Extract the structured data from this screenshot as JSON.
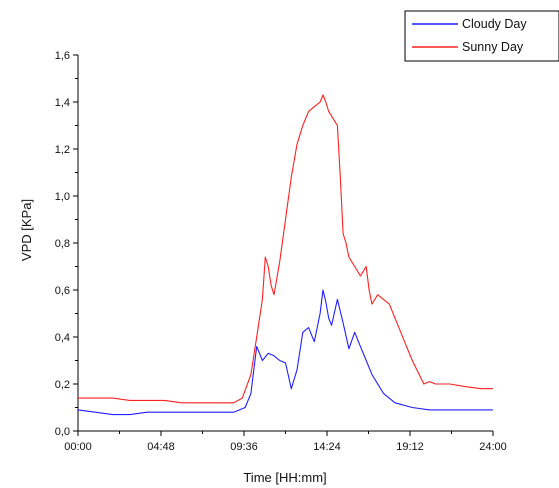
{
  "chart_data": {
    "type": "line",
    "title": "",
    "xlabel": "Time [HH:mm]",
    "ylabel": "VPD [KPa]",
    "xlim": [
      0,
      1440
    ],
    "ylim": [
      0,
      1.6
    ],
    "x_ticks": [
      0,
      288,
      576,
      864,
      1152,
      1440
    ],
    "x_tick_labels": [
      "00:00",
      "04:48",
      "09:36",
      "14:24",
      "19:12",
      "24:00"
    ],
    "y_ticks": [
      0,
      0.2,
      0.4,
      0.6,
      0.8,
      1.0,
      1.2,
      1.4,
      1.6
    ],
    "y_tick_labels": [
      "0,0",
      "0,2",
      "0,4",
      "0,6",
      "0,8",
      "1,0",
      "1,2",
      "1,4",
      "1,6"
    ],
    "grid": false,
    "legend_position": "top-right",
    "series": [
      {
        "name": "Cloudy Day",
        "color": "#1f1fff",
        "x": [
          0,
          60,
          120,
          180,
          240,
          300,
          360,
          420,
          480,
          540,
          580,
          600,
          620,
          640,
          660,
          680,
          700,
          720,
          740,
          760,
          780,
          800,
          820,
          840,
          850,
          860,
          870,
          880,
          900,
          920,
          940,
          960,
          980,
          1000,
          1020,
          1060,
          1100,
          1160,
          1220,
          1280,
          1340,
          1440
        ],
        "y": [
          0.09,
          0.08,
          0.07,
          0.07,
          0.08,
          0.08,
          0.08,
          0.08,
          0.08,
          0.08,
          0.1,
          0.16,
          0.36,
          0.3,
          0.33,
          0.32,
          0.3,
          0.29,
          0.18,
          0.26,
          0.42,
          0.44,
          0.38,
          0.5,
          0.6,
          0.55,
          0.48,
          0.45,
          0.56,
          0.46,
          0.35,
          0.42,
          0.36,
          0.3,
          0.24,
          0.16,
          0.12,
          0.1,
          0.09,
          0.09,
          0.09,
          0.09
        ]
      },
      {
        "name": "Sunny Day",
        "color": "#ff2020",
        "x": [
          0,
          60,
          120,
          180,
          240,
          300,
          360,
          420,
          480,
          540,
          570,
          600,
          620,
          640,
          650,
          660,
          670,
          680,
          700,
          720,
          740,
          760,
          780,
          800,
          820,
          840,
          850,
          860,
          870,
          880,
          900,
          910,
          920,
          930,
          940,
          960,
          980,
          1000,
          1010,
          1020,
          1040,
          1060,
          1080,
          1100,
          1120,
          1140,
          1160,
          1180,
          1200,
          1220,
          1240,
          1260,
          1290,
          1340,
          1400,
          1440
        ],
        "y": [
          0.14,
          0.14,
          0.14,
          0.13,
          0.13,
          0.13,
          0.12,
          0.12,
          0.12,
          0.12,
          0.14,
          0.24,
          0.4,
          0.56,
          0.74,
          0.7,
          0.62,
          0.58,
          0.72,
          0.9,
          1.08,
          1.22,
          1.3,
          1.36,
          1.38,
          1.4,
          1.43,
          1.4,
          1.36,
          1.34,
          1.3,
          1.08,
          0.84,
          0.8,
          0.74,
          0.7,
          0.66,
          0.7,
          0.6,
          0.54,
          0.58,
          0.56,
          0.54,
          0.48,
          0.42,
          0.36,
          0.3,
          0.25,
          0.2,
          0.21,
          0.2,
          0.2,
          0.2,
          0.19,
          0.18,
          0.18
        ]
      }
    ]
  }
}
